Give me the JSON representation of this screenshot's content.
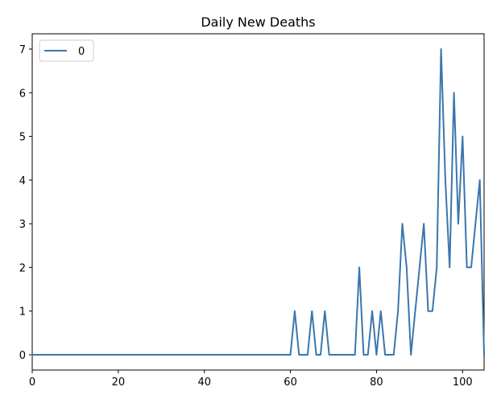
{
  "chart_data": {
    "type": "line",
    "title": "Daily New Deaths",
    "xlabel": "",
    "ylabel": "",
    "xlim": [
      0,
      105
    ],
    "ylim": [
      -0.35,
      7.35
    ],
    "xticks": [
      0,
      20,
      40,
      60,
      80,
      100
    ],
    "yticks": [
      0,
      1,
      2,
      3,
      4,
      5,
      6,
      7
    ],
    "grid": false,
    "legend_position": "top-left",
    "series": [
      {
        "name": "0",
        "color": "#3a76ad",
        "x": [
          0,
          1,
          2,
          3,
          4,
          5,
          6,
          7,
          8,
          9,
          10,
          11,
          12,
          13,
          14,
          15,
          16,
          17,
          18,
          19,
          20,
          21,
          22,
          23,
          24,
          25,
          26,
          27,
          28,
          29,
          30,
          31,
          32,
          33,
          34,
          35,
          36,
          37,
          38,
          39,
          40,
          41,
          42,
          43,
          44,
          45,
          46,
          47,
          48,
          49,
          50,
          51,
          52,
          53,
          54,
          55,
          56,
          57,
          58,
          59,
          60,
          61,
          62,
          63,
          64,
          65,
          66,
          67,
          68,
          69,
          70,
          71,
          72,
          73,
          74,
          75,
          76,
          77,
          78,
          79,
          80,
          81,
          82,
          83,
          84,
          85,
          86,
          87,
          88,
          89,
          90,
          91,
          92,
          93,
          94,
          95,
          96,
          97,
          98,
          99,
          100,
          101,
          102,
          103,
          104,
          105
        ],
        "values": [
          0,
          0,
          0,
          0,
          0,
          0,
          0,
          0,
          0,
          0,
          0,
          0,
          0,
          0,
          0,
          0,
          0,
          0,
          0,
          0,
          0,
          0,
          0,
          0,
          0,
          0,
          0,
          0,
          0,
          0,
          0,
          0,
          0,
          0,
          0,
          0,
          0,
          0,
          0,
          0,
          0,
          0,
          0,
          0,
          0,
          0,
          0,
          0,
          0,
          0,
          0,
          0,
          0,
          0,
          0,
          0,
          0,
          0,
          0,
          0,
          0,
          1,
          0,
          0,
          0,
          1,
          0,
          0,
          1,
          0,
          0,
          0,
          0,
          0,
          0,
          0,
          2,
          0,
          0,
          1,
          0,
          1,
          0,
          0,
          0,
          1,
          3,
          2,
          0,
          1,
          2,
          3,
          1,
          1,
          2,
          7,
          4,
          2,
          6,
          3,
          5,
          2,
          2,
          3,
          4,
          0
        ]
      }
    ]
  }
}
